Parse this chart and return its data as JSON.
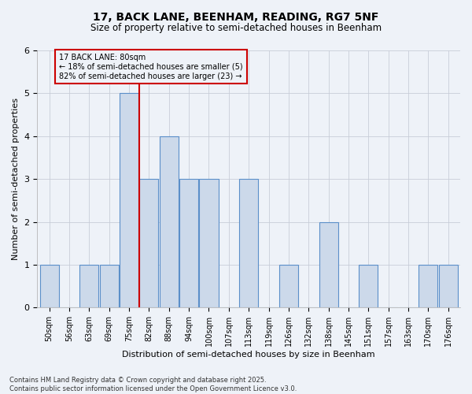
{
  "title_line1": "17, BACK LANE, BEENHAM, READING, RG7 5NF",
  "title_line2": "Size of property relative to semi-detached houses in Beenham",
  "xlabel": "Distribution of semi-detached houses by size in Beenham",
  "ylabel": "Number of semi-detached properties",
  "categories": [
    "50sqm",
    "56sqm",
    "63sqm",
    "69sqm",
    "75sqm",
    "82sqm",
    "88sqm",
    "94sqm",
    "100sqm",
    "107sqm",
    "113sqm",
    "119sqm",
    "126sqm",
    "132sqm",
    "138sqm",
    "145sqm",
    "151sqm",
    "157sqm",
    "163sqm",
    "170sqm",
    "176sqm"
  ],
  "values": [
    1,
    0,
    1,
    1,
    5,
    3,
    4,
    3,
    3,
    0,
    3,
    0,
    1,
    0,
    2,
    0,
    1,
    0,
    0,
    1,
    1
  ],
  "highlight_index": 4,
  "bar_color": "#ccd9ea",
  "bar_edge_color": "#5b8fc9",
  "highlight_line_color": "#cc0000",
  "annotation_box_color": "#cc0000",
  "annotation_text": "17 BACK LANE: 80sqm\n← 18% of semi-detached houses are smaller (5)\n82% of semi-detached houses are larger (23) →",
  "ylim": [
    0,
    6
  ],
  "yticks": [
    0,
    1,
    2,
    3,
    4,
    5,
    6
  ],
  "footnote": "Contains HM Land Registry data © Crown copyright and database right 2025.\nContains public sector information licensed under the Open Government Licence v3.0.",
  "bg_color": "#eef2f8"
}
